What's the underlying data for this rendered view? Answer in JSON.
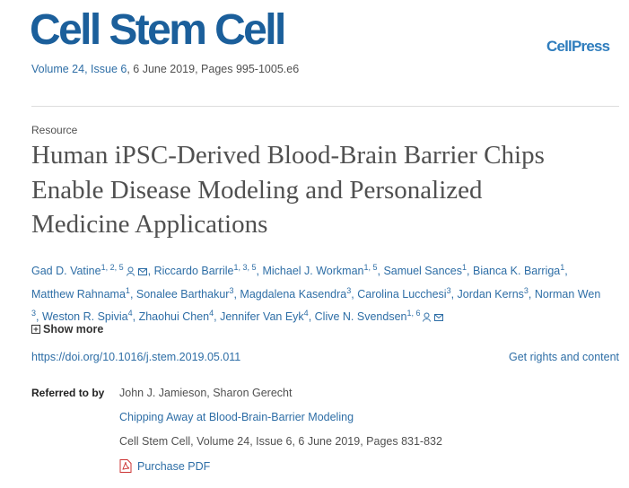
{
  "header": {
    "journal": "Cell Stem Cell",
    "publisher": "CellPress",
    "volume_link": "Volume 24, Issue 6",
    "citation": ", 6 June 2019, Pages 995-1005.e6"
  },
  "article": {
    "type": "Resource",
    "title_lines": [
      "Human iPSC-Derived Blood-Brain Barrier Chips",
      "Enable Disease Modeling and Personalized",
      "Medicine Applications"
    ],
    "authors": [
      {
        "name": "Gad D. Vatine",
        "sup": "1, 2, 5"
      },
      {
        "name": "Riccardo Barrile",
        "sup": "1, 3, 5"
      },
      {
        "name": "Michael J. Workman",
        "sup": "1, 5"
      },
      {
        "name": "Samuel Sances",
        "sup": "1"
      },
      {
        "name": "Bianca K. Barriga",
        "sup": "1"
      },
      {
        "name": "Matthew Rahnama",
        "sup": "1"
      },
      {
        "name": "Sonalee Barthakur",
        "sup": "3"
      },
      {
        "name": "Magdalena Kasendra",
        "sup": "3"
      },
      {
        "name": "Carolina Lucchesi",
        "sup": "3"
      },
      {
        "name": "Jordan Kerns",
        "sup": "3"
      },
      {
        "name": "Norman Wen",
        "sup": "3"
      },
      {
        "name": "Weston R. Spivia",
        "sup": "4"
      },
      {
        "name": "Zhaohui Chen",
        "sup": "4"
      },
      {
        "name": "Jennifer Van Eyk",
        "sup": "4"
      },
      {
        "name": "Clive N. Svendsen",
        "sup": "1, 6"
      }
    ],
    "show_more": "Show more",
    "doi": "https://doi.org/10.1016/j.stem.2019.05.011",
    "rights": "Get rights and content"
  },
  "referred_to_by": {
    "label": "Referred to by",
    "authors": "John J. Jamieson, Sharon Gerecht",
    "title": "Chipping Away at Blood-Brain-Barrier Modeling",
    "citation": "Cell Stem Cell, Volume 24, Issue 6, 6 June 2019, Pages 831-832",
    "pdf": "Purchase PDF"
  }
}
